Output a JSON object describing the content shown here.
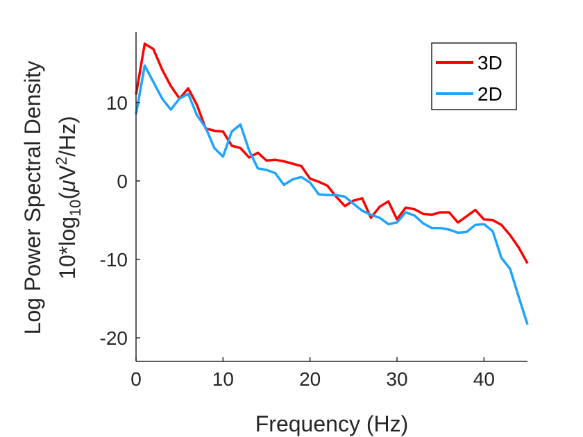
{
  "chart_data": {
    "type": "line",
    "title": "",
    "xlabel": "Frequency (Hz)",
    "ylabel_line1": "Log Power Spectral Density",
    "ylabel_line2_prefix": "10*log",
    "ylabel_line2_sub": "10",
    "ylabel_line2_mid": "(",
    "ylabel_line2_mu": "μ",
    "ylabel_line2_V": "V",
    "ylabel_line2_sup": "2",
    "ylabel_line2_suffix": "/Hz)",
    "xlim": [
      0,
      45
    ],
    "ylim": [
      -23,
      19
    ],
    "xticks": [
      0,
      10,
      20,
      30,
      40
    ],
    "xtick_labels": [
      "0",
      "10",
      "20",
      "30",
      "40"
    ],
    "yticks": [
      -20,
      -10,
      0,
      10
    ],
    "ytick_labels": [
      "-20",
      "-10",
      "0",
      "10"
    ],
    "grid": false,
    "legend_position": "top-right",
    "x": [
      0,
      1,
      2,
      3,
      4,
      5,
      6,
      7,
      8,
      9,
      10,
      11,
      12,
      13,
      14,
      15,
      16,
      17,
      18,
      19,
      20,
      21,
      22,
      23,
      24,
      25,
      26,
      27,
      28,
      29,
      30,
      31,
      32,
      33,
      34,
      35,
      36,
      37,
      38,
      39,
      40,
      41,
      42,
      43,
      44,
      45
    ],
    "series": [
      {
        "name": "3D",
        "color": "#ff0000",
        "values": [
          11.0,
          17.5,
          16.8,
          14.2,
          12.1,
          10.5,
          11.8,
          9.7,
          6.7,
          6.4,
          6.3,
          4.5,
          4.2,
          3.0,
          3.6,
          2.6,
          2.7,
          2.5,
          2.2,
          1.9,
          0.3,
          -0.1,
          -0.6,
          -2.0,
          -3.2,
          -2.5,
          -2.2,
          -4.7,
          -3.3,
          -2.6,
          -4.9,
          -3.4,
          -3.6,
          -4.2,
          -4.3,
          -4.0,
          -4.0,
          -5.3,
          -4.5,
          -3.7,
          -4.9,
          -5.0,
          -5.6,
          -6.9,
          -8.5,
          -10.5
        ]
      },
      {
        "name": "2D",
        "color": "#1ea4ff",
        "values": [
          8.5,
          14.7,
          12.6,
          10.5,
          9.1,
          10.5,
          11.1,
          8.4,
          6.8,
          4.2,
          3.1,
          6.3,
          7.2,
          3.9,
          1.6,
          1.4,
          1.0,
          -0.5,
          0.2,
          0.5,
          -0.2,
          -1.7,
          -1.8,
          -1.8,
          -2.0,
          -2.9,
          -3.8,
          -4.3,
          -4.7,
          -5.5,
          -5.3,
          -4.0,
          -4.4,
          -5.4,
          -6.0,
          -6.0,
          -6.2,
          -6.6,
          -6.5,
          -5.6,
          -5.5,
          -6.4,
          -9.8,
          -11.2,
          -14.8,
          -18.3
        ]
      }
    ]
  }
}
